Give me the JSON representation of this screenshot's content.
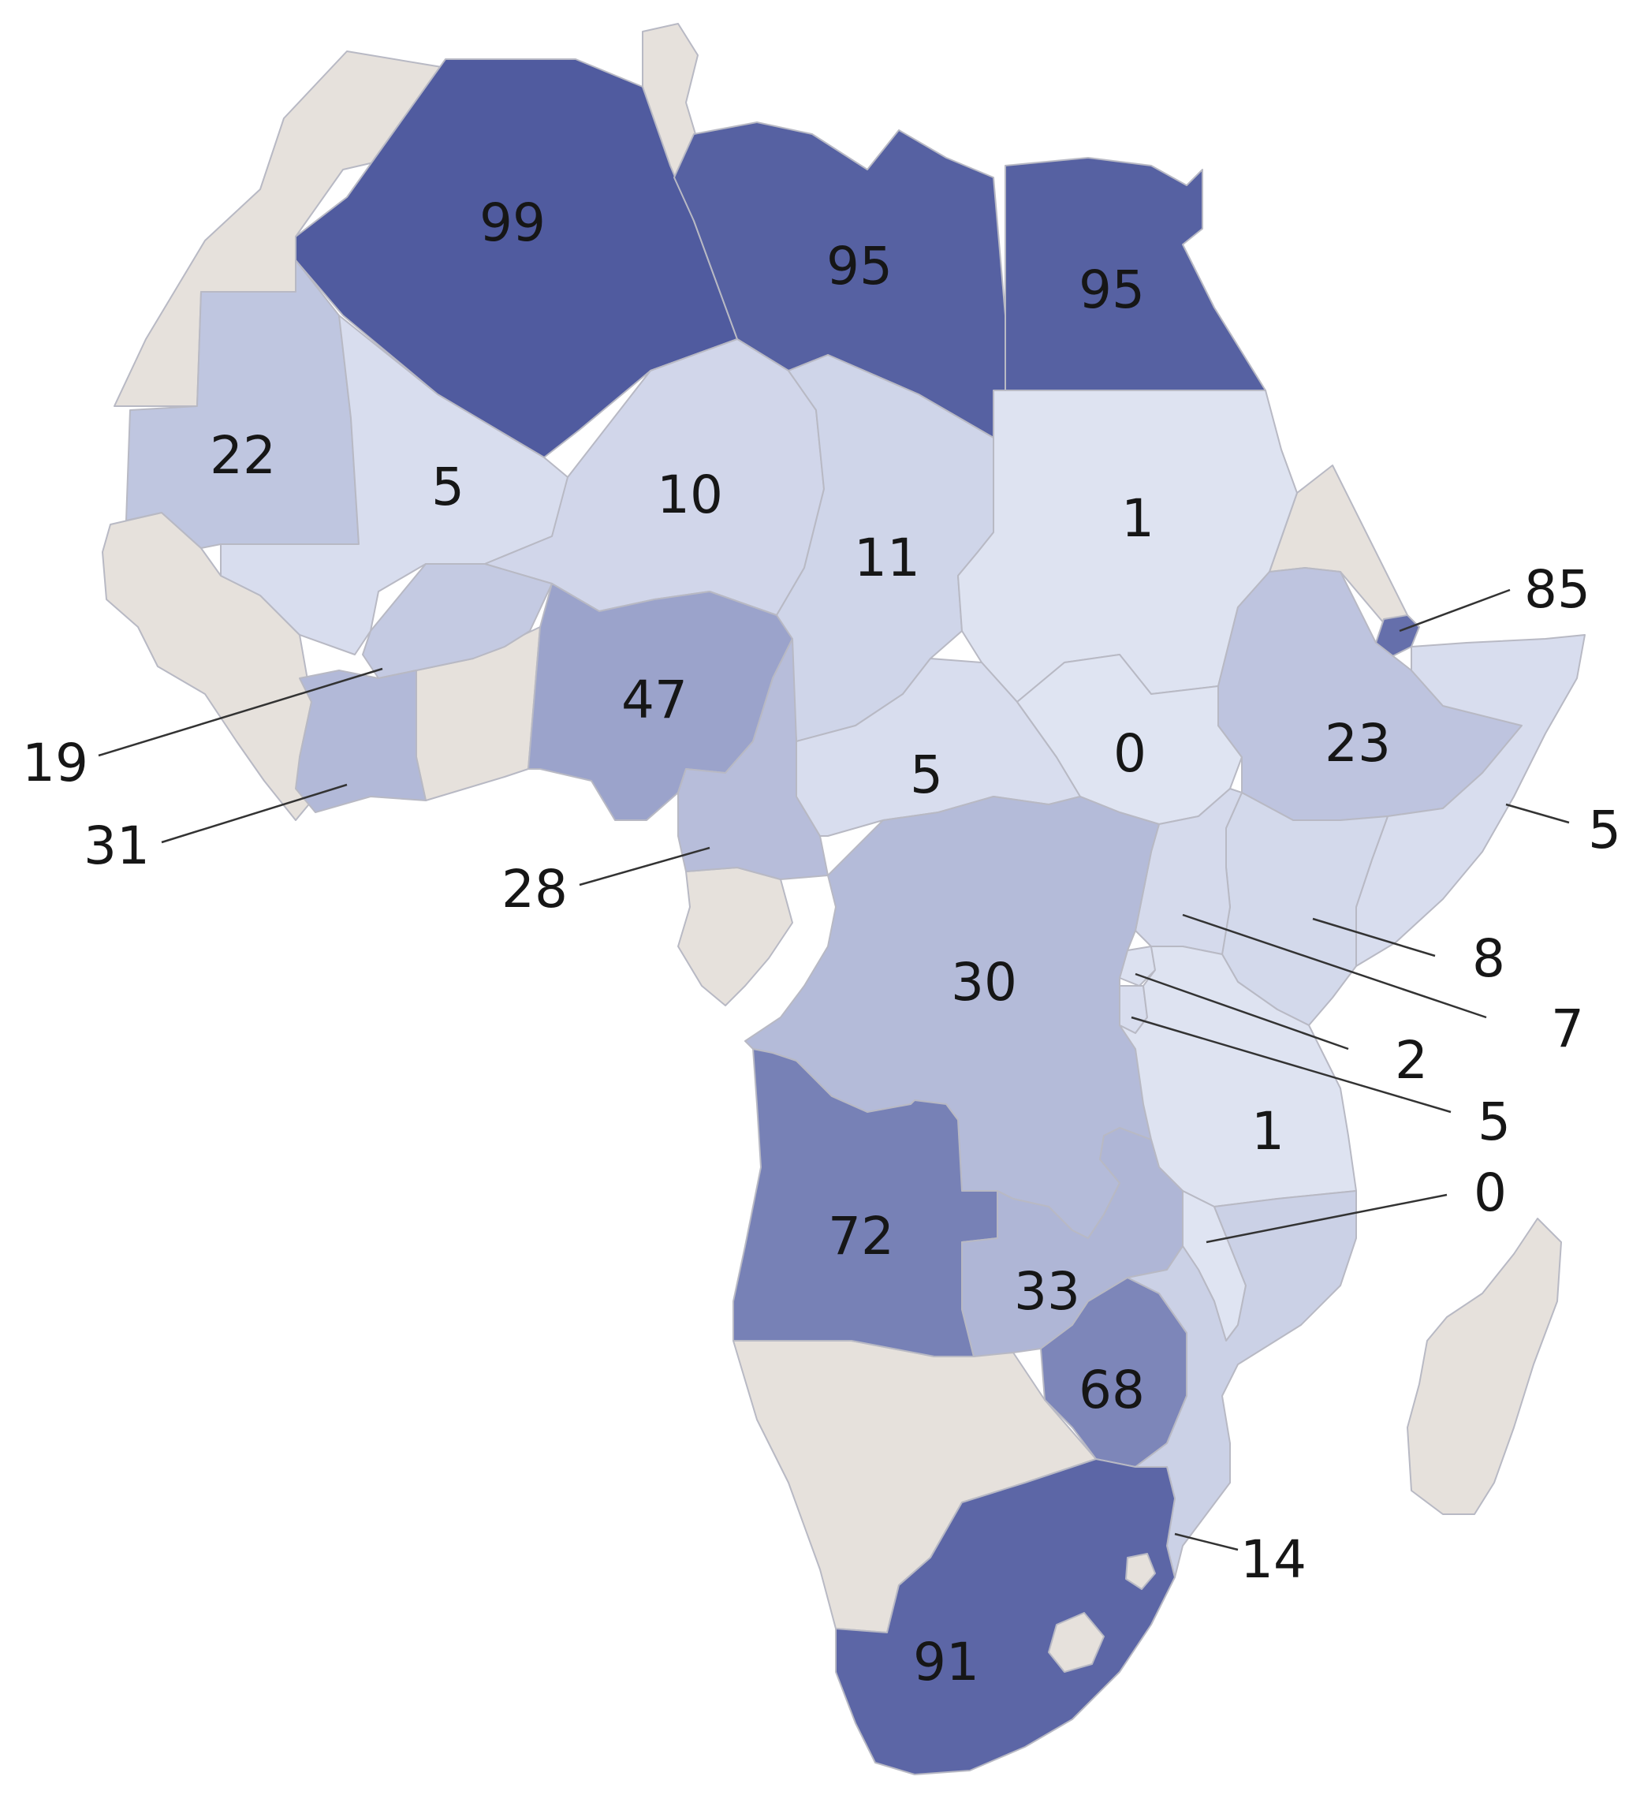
{
  "map": {
    "legend_scale": {
      "low": "#dfe4f2",
      "high": "#4f5a9e",
      "no_data": "#e6e1dc"
    },
    "countries": [
      {
        "id": "algeria",
        "value": 99
      },
      {
        "id": "libya",
        "value": 95
      },
      {
        "id": "egypt",
        "value": 95
      },
      {
        "id": "mauritania",
        "value": 22
      },
      {
        "id": "mali",
        "value": 5
      },
      {
        "id": "niger",
        "value": 10
      },
      {
        "id": "chad",
        "value": 11
      },
      {
        "id": "sudan",
        "value": 1
      },
      {
        "id": "djibouti",
        "value": 85
      },
      {
        "id": "burkina-faso",
        "value": 19
      },
      {
        "id": "cote-divoire",
        "value": 31
      },
      {
        "id": "nigeria",
        "value": 47
      },
      {
        "id": "cameroon",
        "value": 28
      },
      {
        "id": "central-african-republic",
        "value": 5
      },
      {
        "id": "south-sudan",
        "value": 0
      },
      {
        "id": "ethiopia",
        "value": 23
      },
      {
        "id": "somalia",
        "value": 5
      },
      {
        "id": "kenya",
        "value": 8
      },
      {
        "id": "uganda",
        "value": 7
      },
      {
        "id": "rwanda",
        "value": 2
      },
      {
        "id": "burundi",
        "value": 5
      },
      {
        "id": "dr-congo",
        "value": 30
      },
      {
        "id": "tanzania",
        "value": 1
      },
      {
        "id": "malawi",
        "value": 0
      },
      {
        "id": "angola",
        "value": 72
      },
      {
        "id": "zambia",
        "value": 33
      },
      {
        "id": "zimbabwe",
        "value": 68
      },
      {
        "id": "mozambique",
        "value": 14
      },
      {
        "id": "south-africa",
        "value": 91
      }
    ],
    "labels": {
      "algeria": "99",
      "libya": "95",
      "egypt": "95",
      "mauritania": "22",
      "mali": "5",
      "niger": "10",
      "chad": "11",
      "sudan": "1",
      "djibouti": "85",
      "burkina_faso": "19",
      "cote_divoire": "31",
      "nigeria": "47",
      "cameroon": "28",
      "car": "5",
      "south_sudan": "0",
      "ethiopia": "23",
      "somalia": "5",
      "kenya": "8",
      "uganda": "7",
      "rwanda": "2",
      "burundi": "5",
      "dr_congo": "30",
      "tanzania": "1",
      "malawi": "0",
      "angola": "72",
      "zambia": "33",
      "zimbabwe": "68",
      "mozambique": "14",
      "south_africa": "91"
    }
  }
}
